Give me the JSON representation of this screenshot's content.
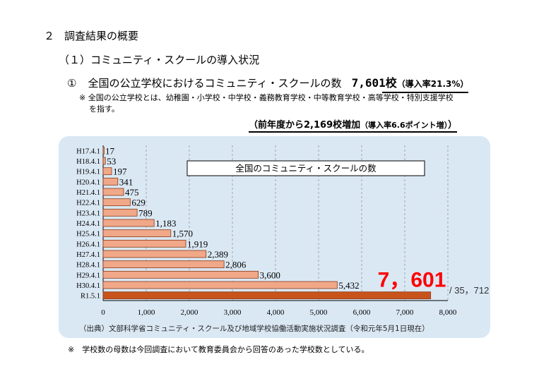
{
  "section": {
    "number": "２",
    "title": "調査結果の概要"
  },
  "subsection": {
    "number": "（１）",
    "title": "コミュニティ・スクールの導入状況"
  },
  "item": {
    "number": "①",
    "title": "全国の公立学校におけるコミュニティ・スクールの数",
    "count_num": "7,601",
    "count_unit": "校",
    "rate": "（導入率21.3%）"
  },
  "note1": {
    "line1": "※ 全国の公立学校とは、幼稚園・小学校・中学校・義務教育学校・中等教育学校・高等学校・特別支援学校",
    "line2": "を指す。"
  },
  "increase": {
    "main": "（前年度から2,169校増加",
    "detail": "（導入率6.6ポイント増）",
    "close": "）"
  },
  "chart_data": {
    "type": "bar",
    "orientation": "horizontal",
    "title": "全国のコミュニティ・スクールの数",
    "categories": [
      "H17.4.1",
      "H18.4.1",
      "H19.4.1",
      "H20.4.1",
      "H21.4.1",
      "H22.4.1",
      "H23.4.1",
      "H24.4.1",
      "H25.4.1",
      "H26.4.1",
      "H27.4.1",
      "H28.4.1",
      "H29.4.1",
      "H30.4.1",
      "R1.5.1"
    ],
    "values": [
      17,
      53,
      197,
      341,
      475,
      629,
      789,
      1183,
      1570,
      1919,
      2389,
      2806,
      3600,
      5432,
      7601
    ],
    "value_labels": [
      "17",
      "53",
      "197",
      "341",
      "475",
      "629",
      "789",
      "1,183",
      "1,570",
      "1,919",
      "2,389",
      "2,806",
      "3,600",
      "5,432",
      "7，601"
    ],
    "xlim": [
      0,
      8000
    ],
    "xticks": [
      0,
      1000,
      2000,
      3000,
      4000,
      5000,
      6000,
      7000,
      8000
    ],
    "xtick_labels": [
      "0",
      "1,000",
      "2,000",
      "3,000",
      "4,000",
      "5,000",
      "6,000",
      "7,000",
      "8,000"
    ],
    "total_label": "/ 35，712",
    "grid": "vertical dashed",
    "colors": {
      "bar": "#f0a888",
      "bar_edge": "#8a3a18",
      "highlight_bar": "#c8541c",
      "highlight_label": "#ff0000",
      "panel": "#dae8f4"
    }
  },
  "source": "（出典）文部科学省コミュニティ・スクール及び地域学校協働活動実施状況調査（令和元年5月1日現在）",
  "note2": "※　学校数の母数は今回調査において教育委員会から回答のあった学校数としている。"
}
